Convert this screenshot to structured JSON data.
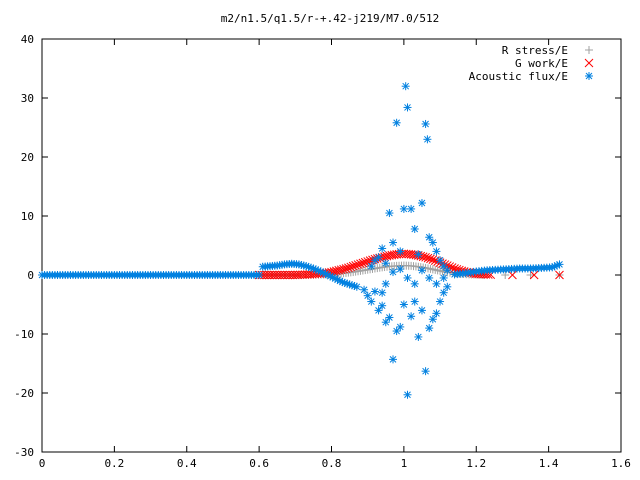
{
  "chart_data": {
    "type": "scatter",
    "title": "m2/n1.5/q1.5/r-+.42-j219/M7.0/512",
    "xlabel": "",
    "ylabel": "",
    "xlim": [
      0,
      1.6
    ],
    "ylim": [
      -30,
      40
    ],
    "grid": false,
    "legend_position": "top-right",
    "x_ticks": [
      "0",
      "0.2",
      "0.4",
      "0.6",
      "0.8",
      "1",
      "1.2",
      "1.4",
      "1.6"
    ],
    "y_ticks": [
      "-30",
      "-20",
      "-10",
      "0",
      "10",
      "20",
      "30",
      "40"
    ],
    "series": [
      {
        "name": "R stress/E",
        "marker": "plus",
        "color": "#a0a0a0",
        "points": [
          [
            0.6,
            0.0
          ],
          [
            0.65,
            0.0
          ],
          [
            0.7,
            0.0
          ],
          [
            0.75,
            0.05
          ],
          [
            0.8,
            0.1
          ],
          [
            0.82,
            0.2
          ],
          [
            0.84,
            0.35
          ],
          [
            0.86,
            0.5
          ],
          [
            0.88,
            0.7
          ],
          [
            0.9,
            0.9
          ],
          [
            0.92,
            1.1
          ],
          [
            0.94,
            1.3
          ],
          [
            0.96,
            1.45
          ],
          [
            0.98,
            1.55
          ],
          [
            1.0,
            1.6
          ],
          [
            1.02,
            1.55
          ],
          [
            1.04,
            1.4
          ],
          [
            1.06,
            1.2
          ],
          [
            1.08,
            0.95
          ],
          [
            1.1,
            0.7
          ],
          [
            1.12,
            0.45
          ],
          [
            1.15,
            0.25
          ],
          [
            1.18,
            0.1
          ],
          [
            1.22,
            0.05
          ],
          [
            1.28,
            0.0
          ],
          [
            1.35,
            0.0
          ],
          [
            1.43,
            0.0
          ]
        ]
      },
      {
        "name": "G work/E",
        "marker": "cross",
        "color": "#ff0000",
        "points": [
          [
            0.6,
            0.0
          ],
          [
            0.65,
            0.0
          ],
          [
            0.7,
            0.0
          ],
          [
            0.74,
            0.1
          ],
          [
            0.78,
            0.3
          ],
          [
            0.8,
            0.5
          ],
          [
            0.82,
            0.8
          ],
          [
            0.84,
            1.1
          ],
          [
            0.86,
            1.5
          ],
          [
            0.88,
            1.9
          ],
          [
            0.9,
            2.3
          ],
          [
            0.92,
            2.7
          ],
          [
            0.94,
            3.0
          ],
          [
            0.96,
            3.3
          ],
          [
            0.98,
            3.5
          ],
          [
            1.0,
            3.6
          ],
          [
            1.02,
            3.5
          ],
          [
            1.04,
            3.3
          ],
          [
            1.06,
            3.0
          ],
          [
            1.08,
            2.6
          ],
          [
            1.1,
            2.1
          ],
          [
            1.12,
            1.6
          ],
          [
            1.14,
            1.1
          ],
          [
            1.16,
            0.7
          ],
          [
            1.18,
            0.4
          ],
          [
            1.2,
            0.2
          ],
          [
            1.24,
            0.05
          ],
          [
            1.3,
            0.0
          ],
          [
            1.36,
            0.0
          ],
          [
            1.43,
            0.0
          ]
        ]
      },
      {
        "name": "Acoustic flux/E",
        "marker": "star",
        "color": "#0080e0",
        "points": [
          [
            0.0,
            0.0
          ],
          [
            0.05,
            0.0
          ],
          [
            0.1,
            0.0
          ],
          [
            0.15,
            0.0
          ],
          [
            0.2,
            0.0
          ],
          [
            0.25,
            0.0
          ],
          [
            0.3,
            0.0
          ],
          [
            0.35,
            0.0
          ],
          [
            0.4,
            0.0
          ],
          [
            0.45,
            0.0
          ],
          [
            0.5,
            0.0
          ],
          [
            0.55,
            0.0
          ],
          [
            0.6,
            0.0
          ],
          [
            0.61,
            1.4
          ],
          [
            0.63,
            1.5
          ],
          [
            0.65,
            1.6
          ],
          [
            0.67,
            1.8
          ],
          [
            0.69,
            1.9
          ],
          [
            0.71,
            1.8
          ],
          [
            0.73,
            1.5
          ],
          [
            0.75,
            1.1
          ],
          [
            0.77,
            0.6
          ],
          [
            0.79,
            0.0
          ],
          [
            0.81,
            -0.6
          ],
          [
            0.83,
            -1.2
          ],
          [
            0.85,
            -1.6
          ],
          [
            0.87,
            -2.0
          ],
          [
            1.14,
            0.1
          ],
          [
            1.17,
            0.3
          ],
          [
            1.2,
            0.6
          ],
          [
            1.23,
            0.8
          ],
          [
            1.26,
            0.9
          ],
          [
            1.29,
            1.0
          ],
          [
            1.32,
            1.1
          ],
          [
            1.35,
            1.1
          ],
          [
            1.38,
            1.2
          ],
          [
            1.41,
            1.3
          ],
          [
            1.43,
            1.8
          ],
          [
            0.89,
            -2.5
          ],
          [
            0.9,
            -3.5
          ],
          [
            0.91,
            -4.5
          ],
          [
            0.92,
            -2.8
          ],
          [
            0.93,
            -6.0
          ],
          [
            0.94,
            -5.2
          ],
          [
            0.95,
            -8.0
          ],
          [
            0.96,
            -7.2
          ],
          [
            0.97,
            -14.3
          ],
          [
            0.98,
            -9.5
          ],
          [
            0.99,
            -8.8
          ],
          [
            1.0,
            -5.0
          ],
          [
            1.01,
            -20.3
          ],
          [
            1.02,
            -7.0
          ],
          [
            1.03,
            -4.5
          ],
          [
            1.04,
            -10.5
          ],
          [
            1.05,
            -6.0
          ],
          [
            1.06,
            -16.3
          ],
          [
            1.07,
            -9.0
          ],
          [
            1.08,
            -7.5
          ],
          [
            1.09,
            -6.5
          ],
          [
            1.1,
            -4.5
          ],
          [
            1.11,
            -3.0
          ],
          [
            1.12,
            -2.0
          ],
          [
            0.91,
            1.5
          ],
          [
            0.92,
            2.5
          ],
          [
            0.93,
            3.0
          ],
          [
            0.94,
            4.5
          ],
          [
            0.95,
            2.0
          ],
          [
            0.96,
            10.5
          ],
          [
            0.97,
            5.5
          ],
          [
            0.98,
            25.8
          ],
          [
            0.99,
            4.0
          ],
          [
            1.0,
            11.2
          ],
          [
            1.005,
            32.0
          ],
          [
            1.01,
            28.4
          ],
          [
            1.02,
            11.2
          ],
          [
            1.03,
            7.8
          ],
          [
            1.04,
            3.5
          ],
          [
            1.05,
            12.2
          ],
          [
            1.06,
            25.6
          ],
          [
            1.065,
            23.0
          ],
          [
            1.07,
            6.4
          ],
          [
            1.08,
            5.5
          ],
          [
            1.09,
            4.0
          ],
          [
            1.1,
            2.5
          ],
          [
            1.11,
            1.5
          ],
          [
            1.12,
            0.8
          ],
          [
            0.94,
            -3.0
          ],
          [
            0.95,
            -1.5
          ],
          [
            0.97,
            0.5
          ],
          [
            0.99,
            1.0
          ],
          [
            1.01,
            -0.5
          ],
          [
            1.03,
            -1.5
          ],
          [
            1.05,
            0.8
          ],
          [
            1.07,
            -0.5
          ],
          [
            1.09,
            -1.5
          ],
          [
            1.11,
            -0.5
          ]
        ]
      }
    ]
  }
}
